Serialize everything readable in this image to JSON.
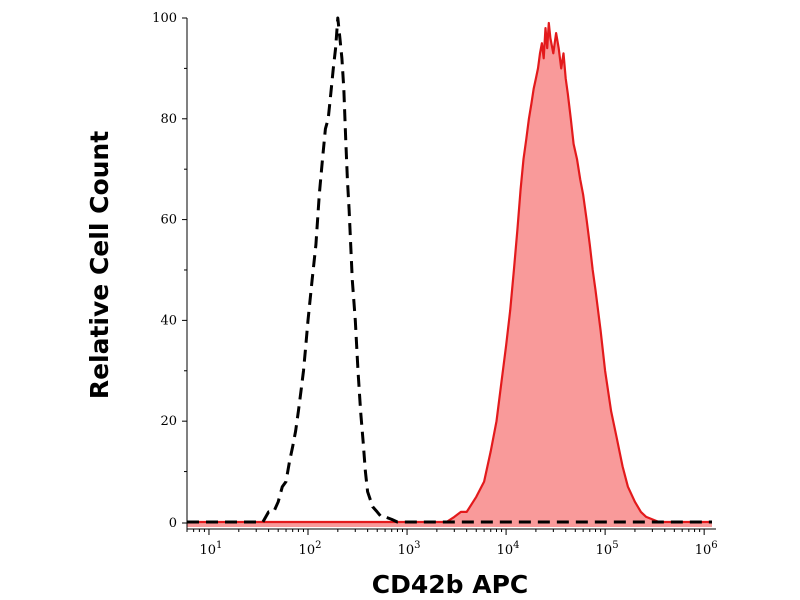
{
  "chart_data": {
    "type": "area",
    "xlabel": "CD42b APC",
    "ylabel": "Relative Cell Count",
    "xscale": "log",
    "xlim": [
      6,
      1200000
    ],
    "ylim": [
      -1,
      100
    ],
    "grid": false,
    "legend": "none",
    "x_ticks": [
      {
        "value": 10,
        "base": "10",
        "exp": "1"
      },
      {
        "value": 100,
        "base": "10",
        "exp": "2"
      },
      {
        "value": 1000,
        "base": "10",
        "exp": "3"
      },
      {
        "value": 10000,
        "base": "10",
        "exp": "4"
      },
      {
        "value": 100000,
        "base": "10",
        "exp": "5"
      },
      {
        "value": 1000000,
        "base": "10",
        "exp": "6"
      }
    ],
    "y_ticks": [
      "0",
      "20",
      "40",
      "60",
      "80",
      "100"
    ],
    "series": [
      {
        "color": "#e31a1c",
        "fill": "#f99a9a",
        "style": "solid-filled",
        "x": [
          6,
          2500,
          3000,
          3500,
          4000,
          5000,
          6000,
          7000,
          8000,
          9000,
          10000,
          11000,
          12000,
          13000,
          14000,
          15000,
          16000,
          17000,
          18000,
          19000,
          20000,
          21000,
          22000,
          23000,
          24000,
          25000,
          26000,
          27000,
          28000,
          30000,
          32000,
          34000,
          36000,
          38000,
          40000,
          42000,
          45000,
          48000,
          52000,
          56000,
          60000,
          65000,
          70000,
          75000,
          80000,
          90000,
          100000,
          115000,
          130000,
          150000,
          170000,
          200000,
          230000,
          260000,
          300000,
          350000,
          1200000
        ],
        "y": [
          0,
          0,
          1,
          2,
          2,
          5,
          8,
          14,
          20,
          28,
          35,
          42,
          50,
          58,
          66,
          72,
          76,
          80,
          83,
          86,
          88,
          90,
          93,
          95,
          92,
          98,
          94,
          99,
          96,
          93,
          97,
          94,
          90,
          93,
          88,
          85,
          80,
          75,
          72,
          68,
          65,
          60,
          55,
          50,
          46,
          38,
          30,
          22,
          17,
          11,
          7,
          4,
          2,
          1,
          0.5,
          0,
          0
        ]
      },
      {
        "color": "#000000",
        "style": "dashed",
        "x": [
          6,
          35,
          40,
          45,
          50,
          55,
          60,
          65,
          70,
          75,
          80,
          85,
          90,
          95,
          100,
          110,
          120,
          130,
          140,
          150,
          160,
          170,
          180,
          190,
          200,
          210,
          220,
          230,
          240,
          250,
          260,
          270,
          280,
          300,
          320,
          340,
          360,
          380,
          400,
          450,
          500,
          550,
          600,
          700,
          800,
          900,
          1200000
        ],
        "y": [
          0,
          0,
          2,
          2,
          4,
          7,
          8,
          12,
          15,
          18,
          22,
          26,
          30,
          35,
          40,
          48,
          55,
          65,
          72,
          78,
          80,
          85,
          90,
          94,
          100,
          96,
          92,
          86,
          76,
          68,
          62,
          55,
          48,
          40,
          30,
          22,
          16,
          10,
          6,
          3,
          2,
          1,
          1,
          0.5,
          0,
          0,
          0
        ]
      }
    ]
  }
}
